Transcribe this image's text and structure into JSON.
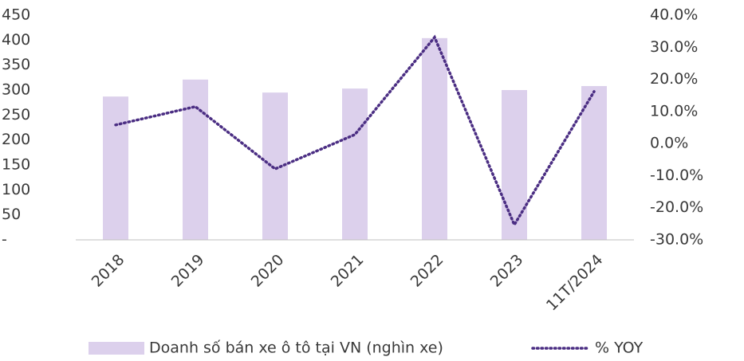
{
  "chart_data": {
    "type": "bar_line",
    "categories": [
      "2018",
      "2019",
      "2020",
      "2021",
      "2022",
      "2023",
      "11T/2024"
    ],
    "series": [
      {
        "name": "Doanh số bán xe ô tô tại VN (nghìn xe)",
        "color": "#dcd0ec",
        "type": "bar",
        "values": [
          287,
          321,
          295,
          303,
          404,
          300,
          308
        ]
      },
      {
        "name": "% YOY",
        "color": "#4b2e83",
        "type": "line",
        "axis": "y2",
        "values": [
          5.8,
          11.5,
          -7.9,
          2.8,
          33.1,
          -25.3,
          16.2
        ]
      }
    ],
    "ylim": [
      0,
      450
    ],
    "yticks": [
      {
        "value": 0,
        "label": "-"
      },
      50,
      100,
      150,
      200,
      250,
      300,
      350,
      400,
      450
    ],
    "y2lim": [
      -30,
      40
    ],
    "y2ticks": [
      {
        "value": -30,
        "label": "-30.0%"
      },
      {
        "value": -20,
        "label": "-20.0%"
      },
      {
        "value": -10,
        "label": "-10.0%"
      },
      {
        "value": 0,
        "label": "0.0%"
      },
      {
        "value": 10,
        "label": "10.0%"
      },
      {
        "value": 20,
        "label": "20.0%"
      },
      {
        "value": 30,
        "label": "30.0%"
      },
      {
        "value": 40,
        "label": "40.0%"
      }
    ],
    "legend": "bottom"
  }
}
